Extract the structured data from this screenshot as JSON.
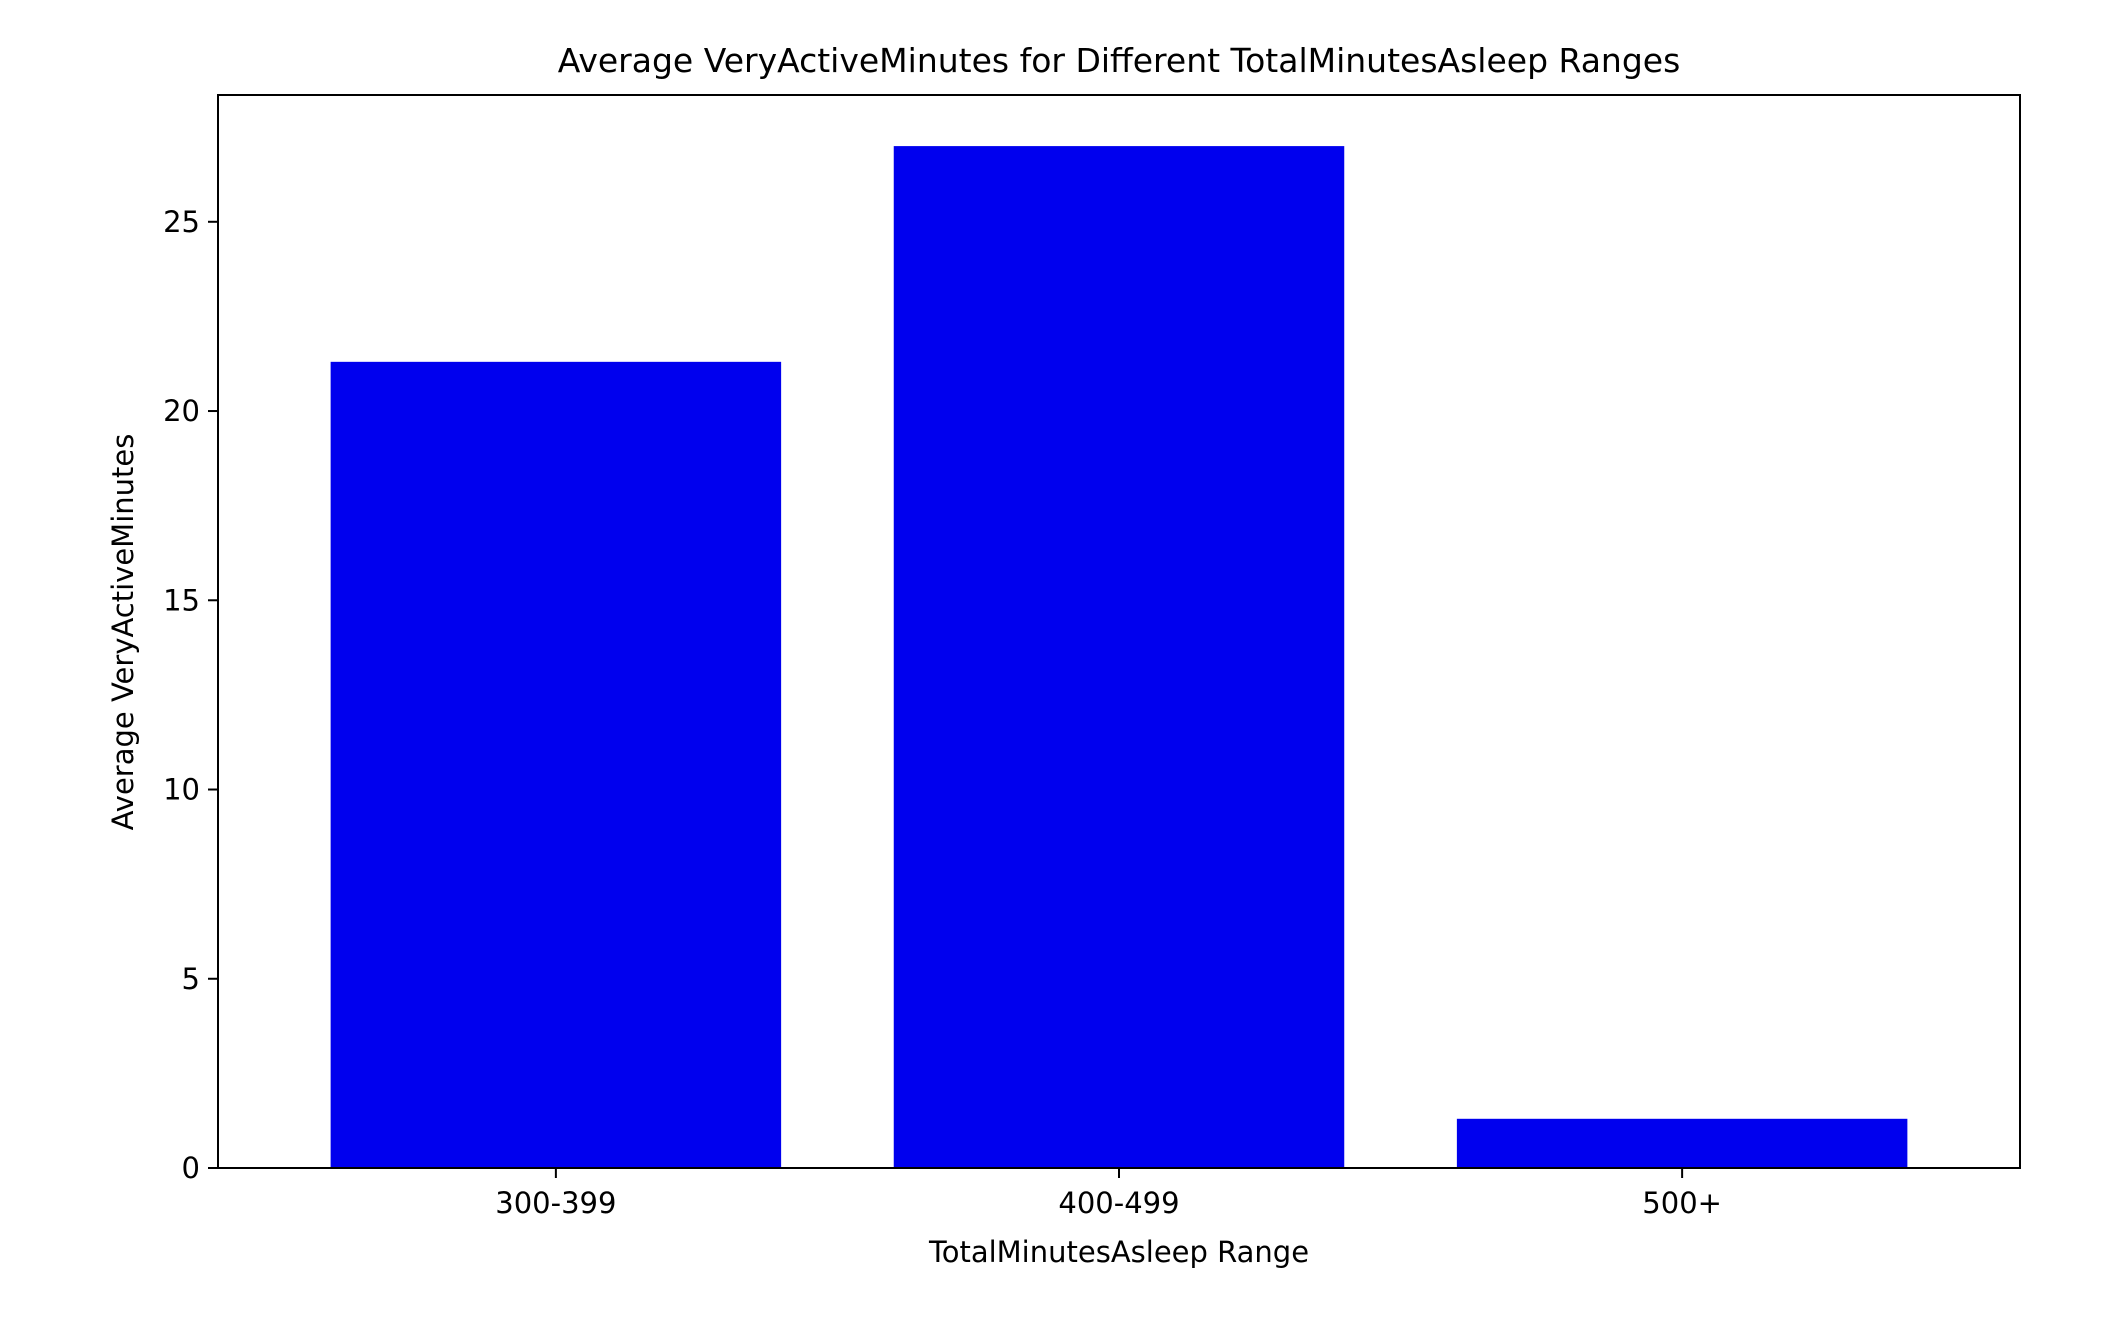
{
  "chart_data": {
    "type": "bar",
    "title": "Average VeryActiveMinutes for Different TotalMinutesAsleep Ranges",
    "xlabel": "TotalMinutesAsleep Range",
    "ylabel": "Average VeryActiveMinutes",
    "categories": [
      "300-399",
      "400-499",
      "500+"
    ],
    "values": [
      21.3,
      27.0,
      1.3
    ],
    "ylim": [
      0,
      28.35
    ],
    "yticks": [
      0,
      5,
      10,
      15,
      20,
      25
    ],
    "grid": false,
    "legend": null,
    "bar_color": "#0000ee"
  }
}
